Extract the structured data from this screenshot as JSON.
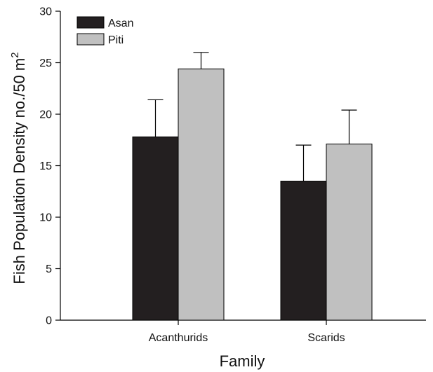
{
  "chart_data": {
    "type": "bar",
    "title": "",
    "xlabel": "Family",
    "ylabel": "Fish Population Density no./50 m",
    "ylabel_superscript": "2",
    "categories": [
      "Acanthurids",
      "Scarids"
    ],
    "series": [
      {
        "name": "Asan",
        "color": "#231f20",
        "values": [
          17.8,
          13.5
        ],
        "errors": [
          3.6,
          3.5
        ]
      },
      {
        "name": "Piti",
        "color": "#c0c0c0",
        "values": [
          24.4,
          17.1
        ],
        "errors": [
          1.6,
          3.3
        ]
      }
    ],
    "ylim": [
      0,
      30
    ],
    "yticks": [
      0,
      5,
      10,
      15,
      20,
      25,
      30
    ],
    "grid": false,
    "legend_position": "top-left"
  }
}
